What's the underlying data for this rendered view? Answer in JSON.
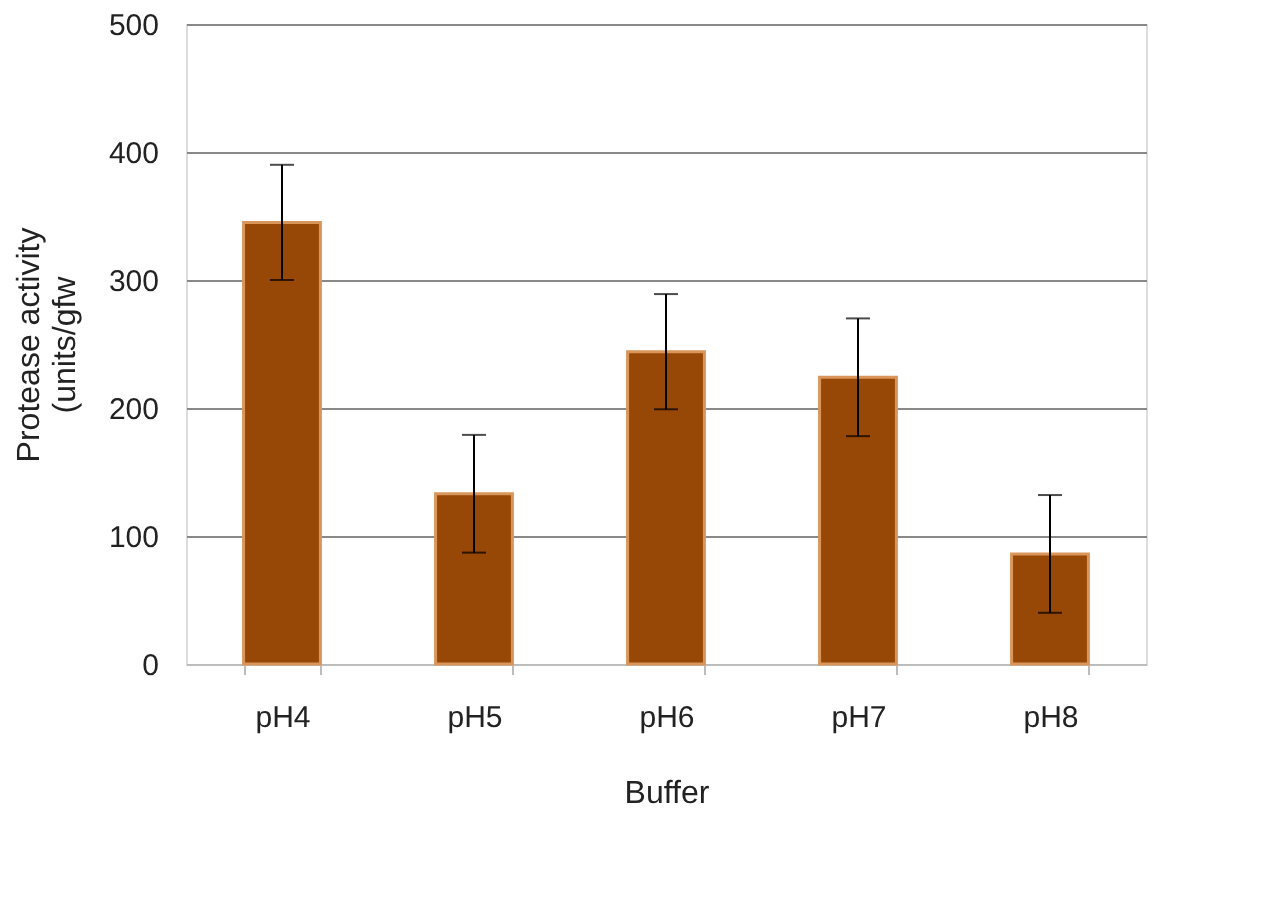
{
  "chart_data": {
    "type": "bar",
    "categories": [
      "pH4",
      "pH5",
      "pH6",
      "pH7",
      "pH8"
    ],
    "values": [
      345,
      133,
      244,
      224,
      86
    ],
    "errors": [
      45,
      46,
      45,
      46,
      46
    ],
    "color": "#974706",
    "xlabel": "Buffer",
    "ylabel": "Protease activity\n(units/gfw",
    "ylim": [
      0,
      500
    ],
    "yticks": [
      0,
      100,
      200,
      300,
      400,
      500
    ],
    "grid": "y"
  }
}
